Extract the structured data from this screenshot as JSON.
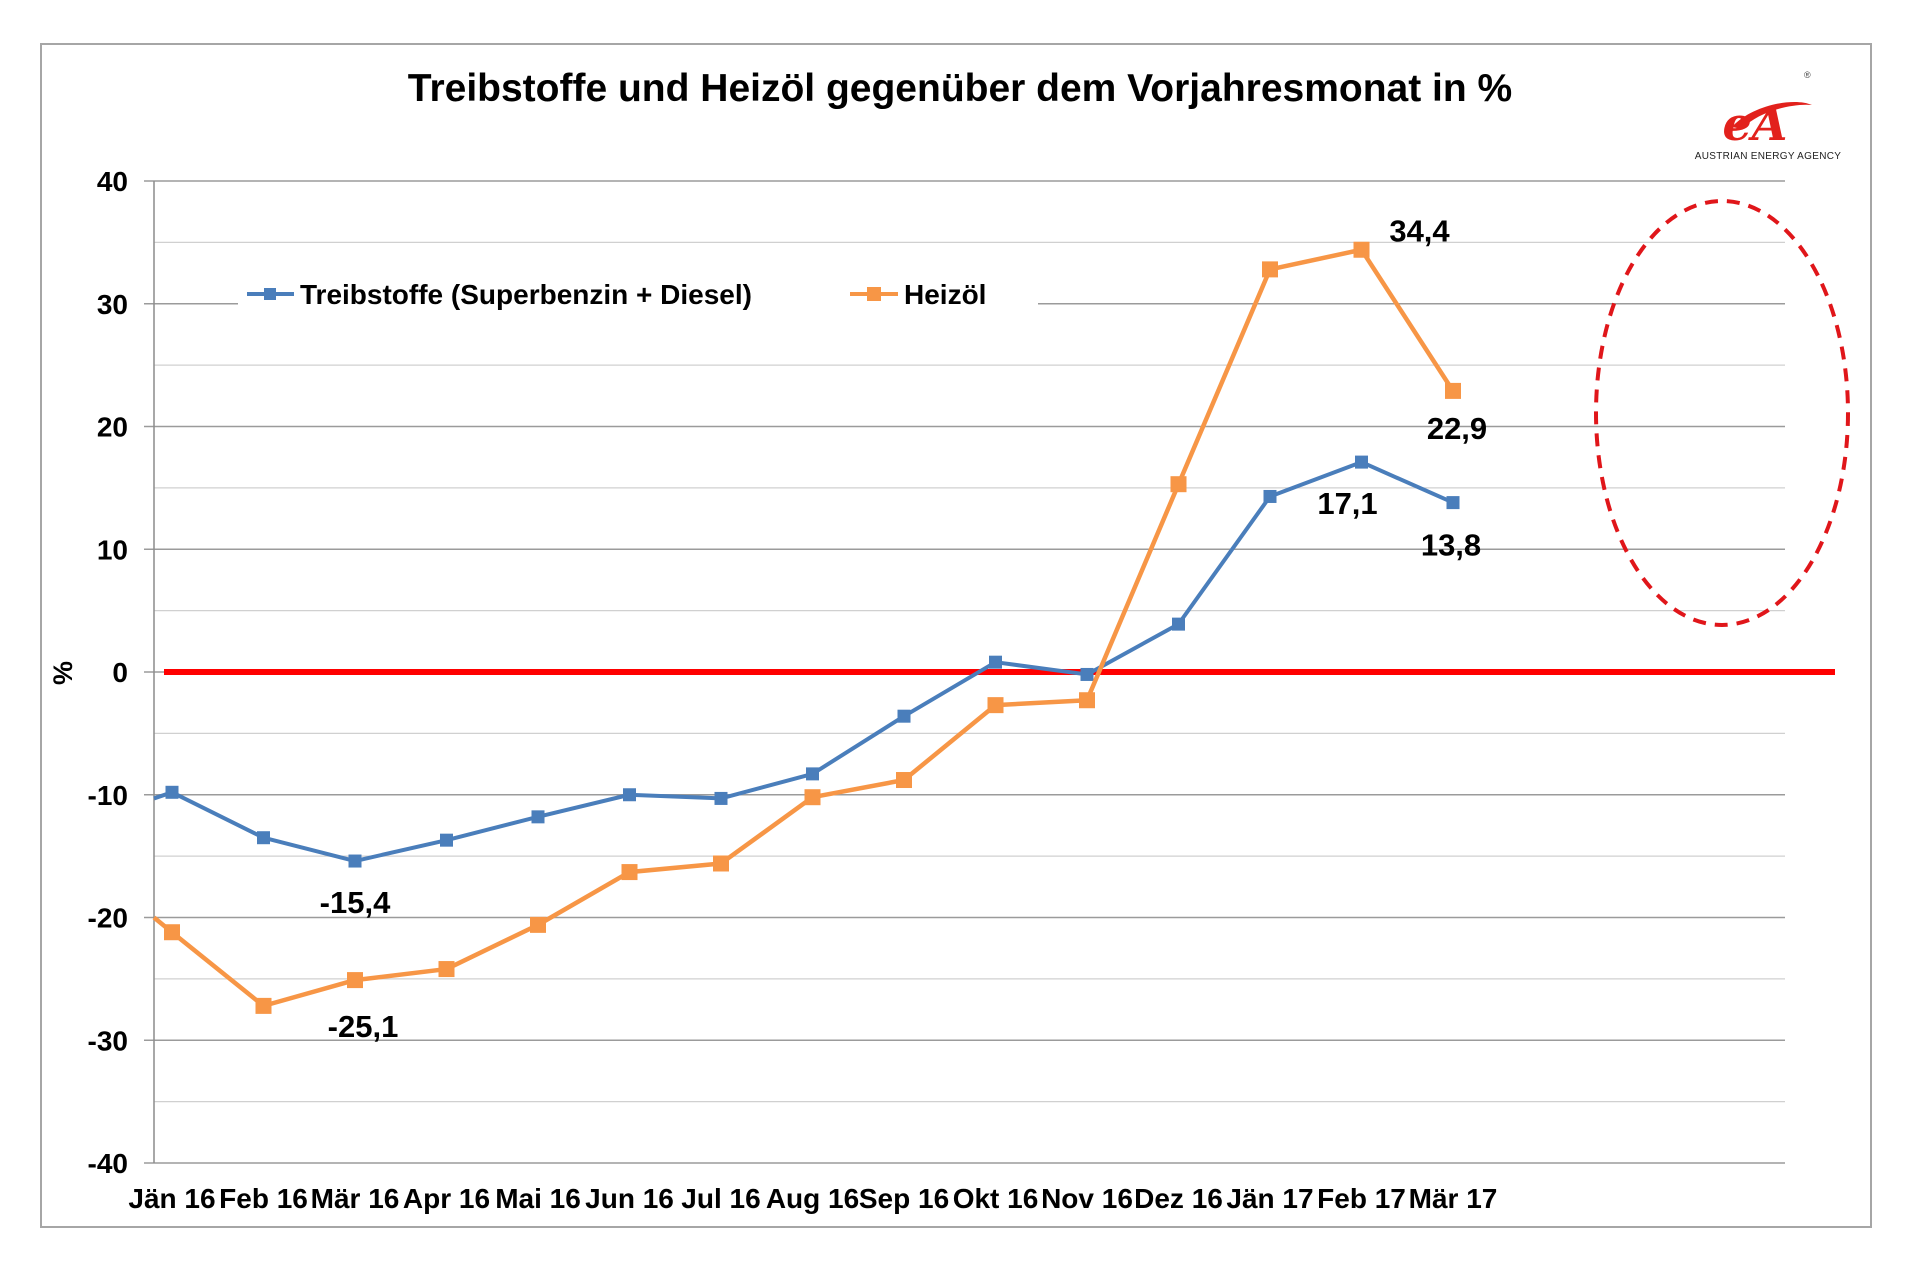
{
  "chart_data": {
    "type": "line",
    "title": "Treibstoffe und Heizöl gegenüber dem Vorjahresmonat in %",
    "ylabel": "%",
    "xlabel": "",
    "ylim": [
      -40,
      40
    ],
    "yticks": [
      40,
      30,
      20,
      10,
      0,
      -10,
      -20,
      -30,
      -40
    ],
    "grid": true,
    "legend_position": "top-left",
    "categories": [
      "Jän 16",
      "Feb 16",
      "Mär 16",
      "Apr 16",
      "Mai 16",
      "Jun 16",
      "Jul 16",
      "Aug 16",
      "Sep 16",
      "Okt 16",
      "Nov 16",
      "Dez 16",
      "Jän 17",
      "Feb 17",
      "Mär 17"
    ],
    "series": [
      {
        "name": "Treibstoffe (Superbenzin + Diesel)",
        "color": "#4a7ebb",
        "start_value": -10.3,
        "values": [
          -9.8,
          -13.5,
          -15.4,
          -13.7,
          -11.8,
          -10.0,
          -10.3,
          -8.3,
          -3.6,
          0.8,
          -0.2,
          3.9,
          14.3,
          17.1,
          13.8
        ]
      },
      {
        "name": "Heizöl",
        "color": "#f79646",
        "start_value": -20.0,
        "values": [
          -21.2,
          -27.2,
          -25.1,
          -24.2,
          -20.6,
          -16.3,
          -15.6,
          -10.2,
          -8.8,
          -2.7,
          -2.3,
          15.3,
          32.8,
          34.4,
          22.9
        ]
      }
    ],
    "data_labels": [
      {
        "text": "-15,4",
        "series": 0,
        "index": 2
      },
      {
        "text": "-25,1",
        "series": 1,
        "index": 2
      },
      {
        "text": "34,4",
        "series": 1,
        "index": 13
      },
      {
        "text": "22,9",
        "series": 1,
        "index": 14
      },
      {
        "text": "17,1",
        "series": 0,
        "index": 13
      },
      {
        "text": "13,8",
        "series": 0,
        "index": 14
      }
    ],
    "reference_line": {
      "value": 0,
      "color": "#ff0000"
    },
    "highlight_ellipse_color": "#e0161a"
  },
  "logo": {
    "mark": "eA",
    "registered": "®",
    "text": "AUSTRIAN ENERGY AGENCY",
    "color": "#e2211c"
  }
}
